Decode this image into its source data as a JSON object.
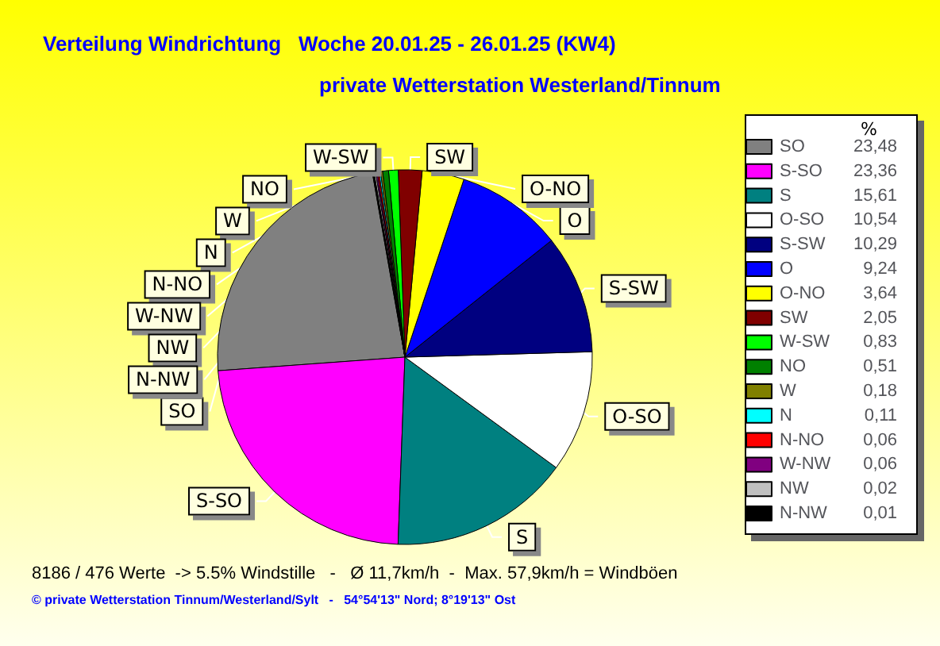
{
  "chart_data": {
    "type": "pie",
    "title": "Verteilung Windrichtung   Woche 20.01.25 - 26.01.25 (KW4)",
    "subtitle": "private Wetterstation Westerland/Tinnum",
    "legend_title": "%",
    "categories": [
      "SO",
      "S-SO",
      "S",
      "O-SO",
      "S-SW",
      "O",
      "O-NO",
      "SW",
      "W-SW",
      "NO",
      "W",
      "N",
      "N-NO",
      "W-NW",
      "NW",
      "N-NW"
    ],
    "values": [
      23.48,
      23.36,
      15.61,
      10.54,
      10.29,
      9.24,
      3.64,
      2.05,
      0.83,
      0.51,
      0.18,
      0.11,
      0.06,
      0.06,
      0.02,
      0.01
    ],
    "colors": [
      "#808080",
      "#ff00ff",
      "#008080",
      "#ffffff",
      "#000080",
      "#0000ff",
      "#ffff00",
      "#800000",
      "#00ff00",
      "#008000",
      "#808000",
      "#00ffff",
      "#ff0000",
      "#800080",
      "#c0c0c0",
      "#000000"
    ],
    "value_labels": [
      "23,48",
      "23,36",
      "15,61",
      "10,54",
      "10,29",
      "9,24",
      "3,64",
      "2,05",
      "0,83",
      "0,51",
      "0,18",
      "0,11",
      "0,06",
      "0,06",
      "0,02",
      "0,01"
    ],
    "legend": "right",
    "annotations": [
      "8186 / 476 Werte  -> 5.5% Windstille   -   Ø 11,7km/h  -  Max. 57,9km/h = Windböen",
      "© private Wetterstation Tinnum/Westerland/Sylt   -   54°54'13\" Nord; 8°19'13\" Ost"
    ]
  }
}
